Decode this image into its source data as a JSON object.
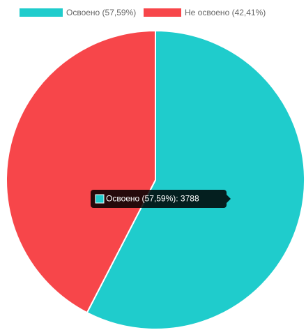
{
  "chart_data": {
    "type": "pie",
    "categories": [
      "Освоено (57,59%)",
      "Не освоено (42,41%)"
    ],
    "values": [
      3788,
      2790
    ],
    "colors": [
      "#1fcccc",
      "#f7464a"
    ],
    "legend": "top",
    "tooltip": "Освоено (57,59%): 3788"
  }
}
